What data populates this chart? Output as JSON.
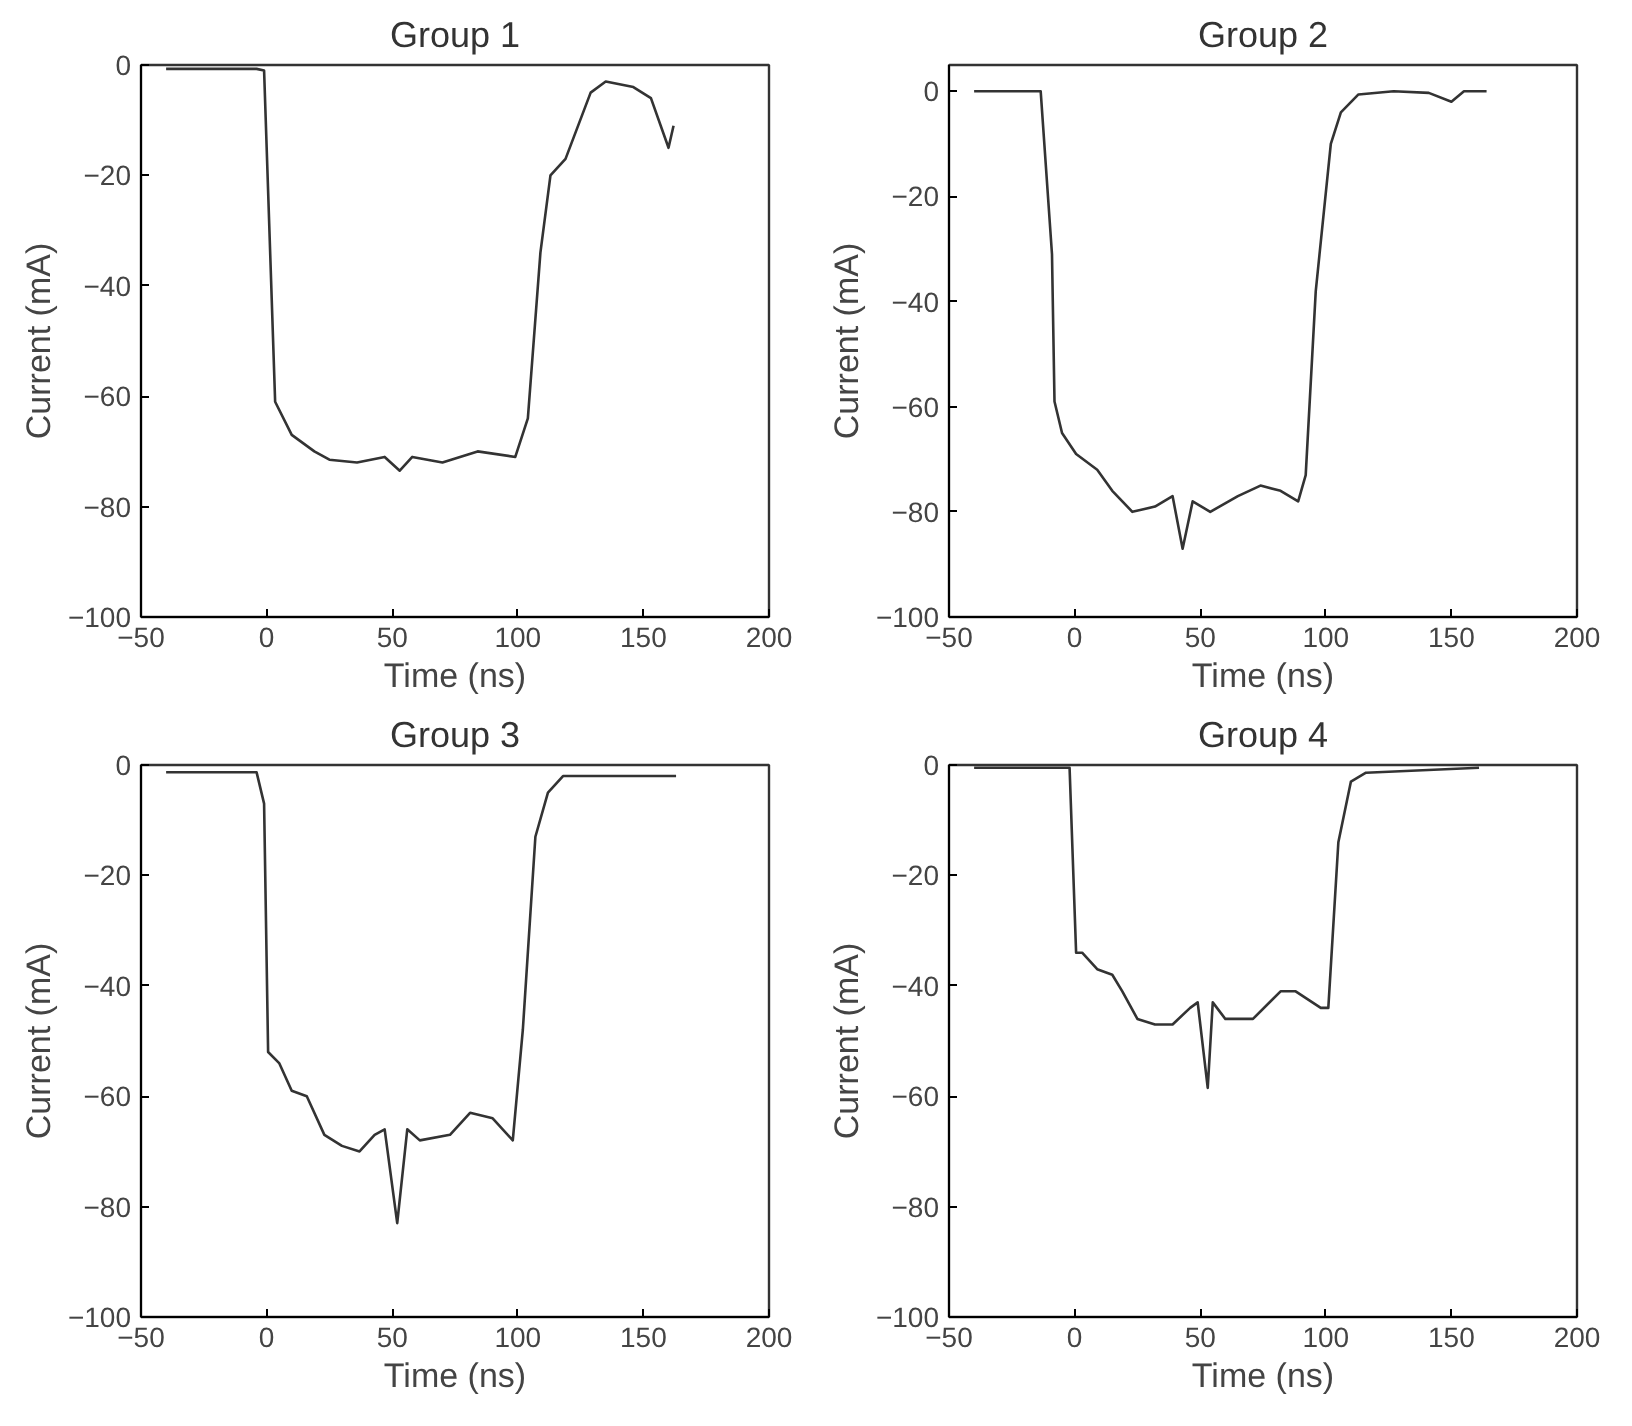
{
  "chart_data": [
    {
      "type": "line",
      "title": "Group 1",
      "xlabel": "Time (ns)",
      "ylabel": "Current (mA)",
      "xlim": [
        -50,
        200
      ],
      "ylim": [
        -100,
        0
      ],
      "xticks": [
        -50,
        0,
        50,
        100,
        150,
        200
      ],
      "yticks": [
        -100,
        -80,
        -60,
        -40,
        -20,
        0
      ],
      "grid": false,
      "marker": "none",
      "line_style": "solid",
      "series": [
        {
          "color": "#333333",
          "x": [
            -40,
            -4,
            -1,
            3.4,
            10,
            19,
            25,
            36,
            47,
            53,
            58,
            70,
            84,
            99,
            104,
            109,
            113,
            119,
            129,
            135,
            146,
            153,
            160,
            162
          ],
          "values": [
            -0.7,
            -0.7,
            -1,
            -61,
            -67,
            -70,
            -71.5,
            -72,
            -71,
            -73.5,
            -71,
            -72,
            -70,
            -71,
            -64,
            -34,
            -20,
            -17,
            -5,
            -3,
            -4,
            -6,
            -15,
            -11
          ]
        }
      ]
    },
    {
      "type": "line",
      "title": "Group 2",
      "xlabel": "Time (ns)",
      "ylabel": "Current (mA)",
      "xlim": [
        -50,
        200
      ],
      "ylim": [
        -100,
        5
      ],
      "xticks": [
        -50,
        0,
        50,
        100,
        150,
        200
      ],
      "yticks": [
        -100,
        -80,
        -60,
        -40,
        -20,
        0
      ],
      "grid": false,
      "marker": "none",
      "line_style": "solid",
      "series": [
        {
          "color": "#333333",
          "x": [
            -40,
            -13.5,
            -9,
            -8,
            -5,
            0.6,
            9,
            15,
            23,
            32,
            39,
            43,
            47,
            54,
            65,
            74,
            82,
            89,
            92,
            96,
            102,
            106,
            113,
            127,
            141,
            150,
            155,
            164
          ],
          "values": [
            0,
            0,
            -31,
            -59,
            -65,
            -69,
            -72,
            -76,
            -80,
            -79,
            -77,
            -87,
            -78,
            -80,
            -77,
            -75,
            -76,
            -78,
            -73,
            -38,
            -10,
            -4,
            -0.6,
            0,
            -0.3,
            -2,
            0,
            0
          ]
        }
      ]
    },
    {
      "type": "line",
      "title": "Group 3",
      "xlabel": "Time (ns)",
      "ylabel": "Current (mA)",
      "xlim": [
        -50,
        200
      ],
      "ylim": [
        -100,
        0
      ],
      "xticks": [
        -50,
        0,
        50,
        100,
        150,
        200
      ],
      "yticks": [
        -100,
        -80,
        -60,
        -40,
        -20,
        0
      ],
      "grid": false,
      "marker": "none",
      "line_style": "solid",
      "series": [
        {
          "color": "#333333",
          "x": [
            -40,
            -4,
            -1,
            0.6,
            5,
            10,
            16,
            23,
            30,
            37,
            43,
            47,
            52,
            56,
            61,
            73,
            81,
            90,
            98,
            102,
            107,
            112,
            118,
            163
          ],
          "values": [
            -1.3,
            -1.3,
            -7,
            -52,
            -54,
            -59,
            -60,
            -67,
            -69,
            -70,
            -67,
            -66,
            -83,
            -66,
            -68,
            -67,
            -63,
            -64,
            -68,
            -48,
            -13,
            -5,
            -2,
            -2
          ]
        }
      ]
    },
    {
      "type": "line",
      "title": "Group 4",
      "xlabel": "Time (ns)",
      "ylabel": "Current (mA)",
      "xlim": [
        -50,
        200
      ],
      "ylim": [
        -100,
        0
      ],
      "xticks": [
        -50,
        0,
        50,
        100,
        150,
        200
      ],
      "yticks": [
        -100,
        -80,
        -60,
        -40,
        -20,
        0
      ],
      "grid": false,
      "marker": "none",
      "line_style": "solid",
      "series": [
        {
          "color": "#333333",
          "x": [
            -40,
            -2,
            0.6,
            3,
            9,
            15,
            19,
            25,
            32,
            39,
            46,
            49,
            53,
            55,
            60,
            71,
            82,
            88,
            98,
            101,
            105,
            110,
            116,
            161
          ],
          "values": [
            -0.5,
            -0.5,
            -34,
            -34,
            -37,
            -38,
            -41,
            -46,
            -47,
            -47,
            -44,
            -43,
            -58.5,
            -43,
            -46,
            -46,
            -41,
            -41,
            -44,
            -44,
            -14,
            -3,
            -1.4,
            -0.5
          ]
        }
      ]
    }
  ]
}
